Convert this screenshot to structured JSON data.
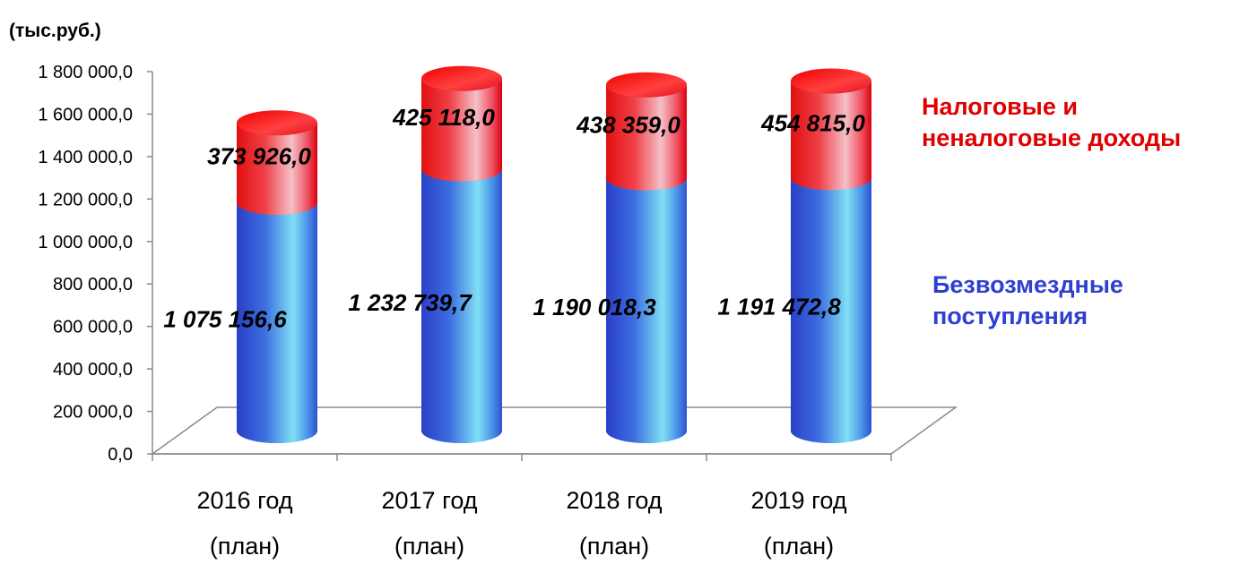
{
  "chart_data": {
    "type": "bar",
    "stacked": true,
    "unit_label": "(тыс.руб.)",
    "categories": [
      [
        "2016 год",
        "(план)"
      ],
      [
        "2017 год",
        "(план)"
      ],
      [
        "2018 год",
        "(план)"
      ],
      [
        "2019 год",
        "(план)"
      ]
    ],
    "series": [
      {
        "name": "Безвозмездные поступления",
        "name_lines": [
          "Безвозмездные",
          "поступления"
        ],
        "color": "#3b5bdc",
        "values": [
          1075156.6,
          1232739.7,
          1190018.3,
          1191472.8
        ],
        "labels": [
          "1 075 156,6",
          "1 232 739,7",
          "1 190 018,3",
          "1 191 472,8"
        ]
      },
      {
        "name": "Налоговые и неналоговые доходы",
        "name_lines": [
          "Налоговые и",
          "неналоговые доходы"
        ],
        "color": "#e00000",
        "values": [
          373926.0,
          425118.0,
          438359.0,
          454815.0
        ],
        "labels": [
          "373 926,0",
          "425 118,0",
          "438 359,0",
          "454 815,0"
        ]
      }
    ],
    "ylim": [
      0,
      1800000
    ],
    "yticks": [
      "0,0",
      "200 000,0",
      "400 000,0",
      "600 000,0",
      "800 000,0",
      "1 000 000,0",
      "1 200 000,0",
      "1 400 000,0",
      "1 600 000,0",
      "1 800 000,0"
    ],
    "grid": false,
    "legend": "right"
  }
}
